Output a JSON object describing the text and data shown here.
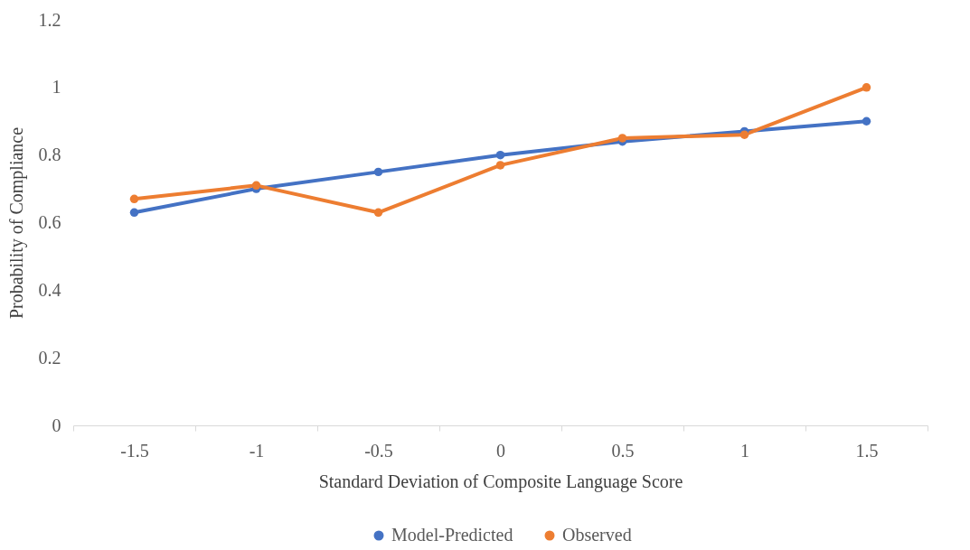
{
  "chart_data": {
    "type": "line",
    "xlabel": "Standard Deviation of Composite Language Score",
    "ylabel": "Probability of Compliance",
    "categories": [
      "-1.5",
      "-1",
      "-0.5",
      "0",
      "0.5",
      "1",
      "1.5"
    ],
    "series": [
      {
        "name": "Model-Predicted",
        "color": "#4472c4",
        "values": [
          0.63,
          0.7,
          0.75,
          0.8,
          0.84,
          0.87,
          0.9
        ]
      },
      {
        "name": "Observed",
        "color": "#ed7d31",
        "values": [
          0.67,
          0.71,
          0.63,
          0.77,
          0.85,
          0.86,
          1.0
        ]
      }
    ],
    "ylim": [
      0,
      1.2
    ],
    "yticks": [
      0,
      0.2,
      0.4,
      0.6,
      0.8,
      1,
      1.2
    ],
    "grid": false,
    "legend": "bottom",
    "marker": "circle",
    "line_style": "solid"
  }
}
